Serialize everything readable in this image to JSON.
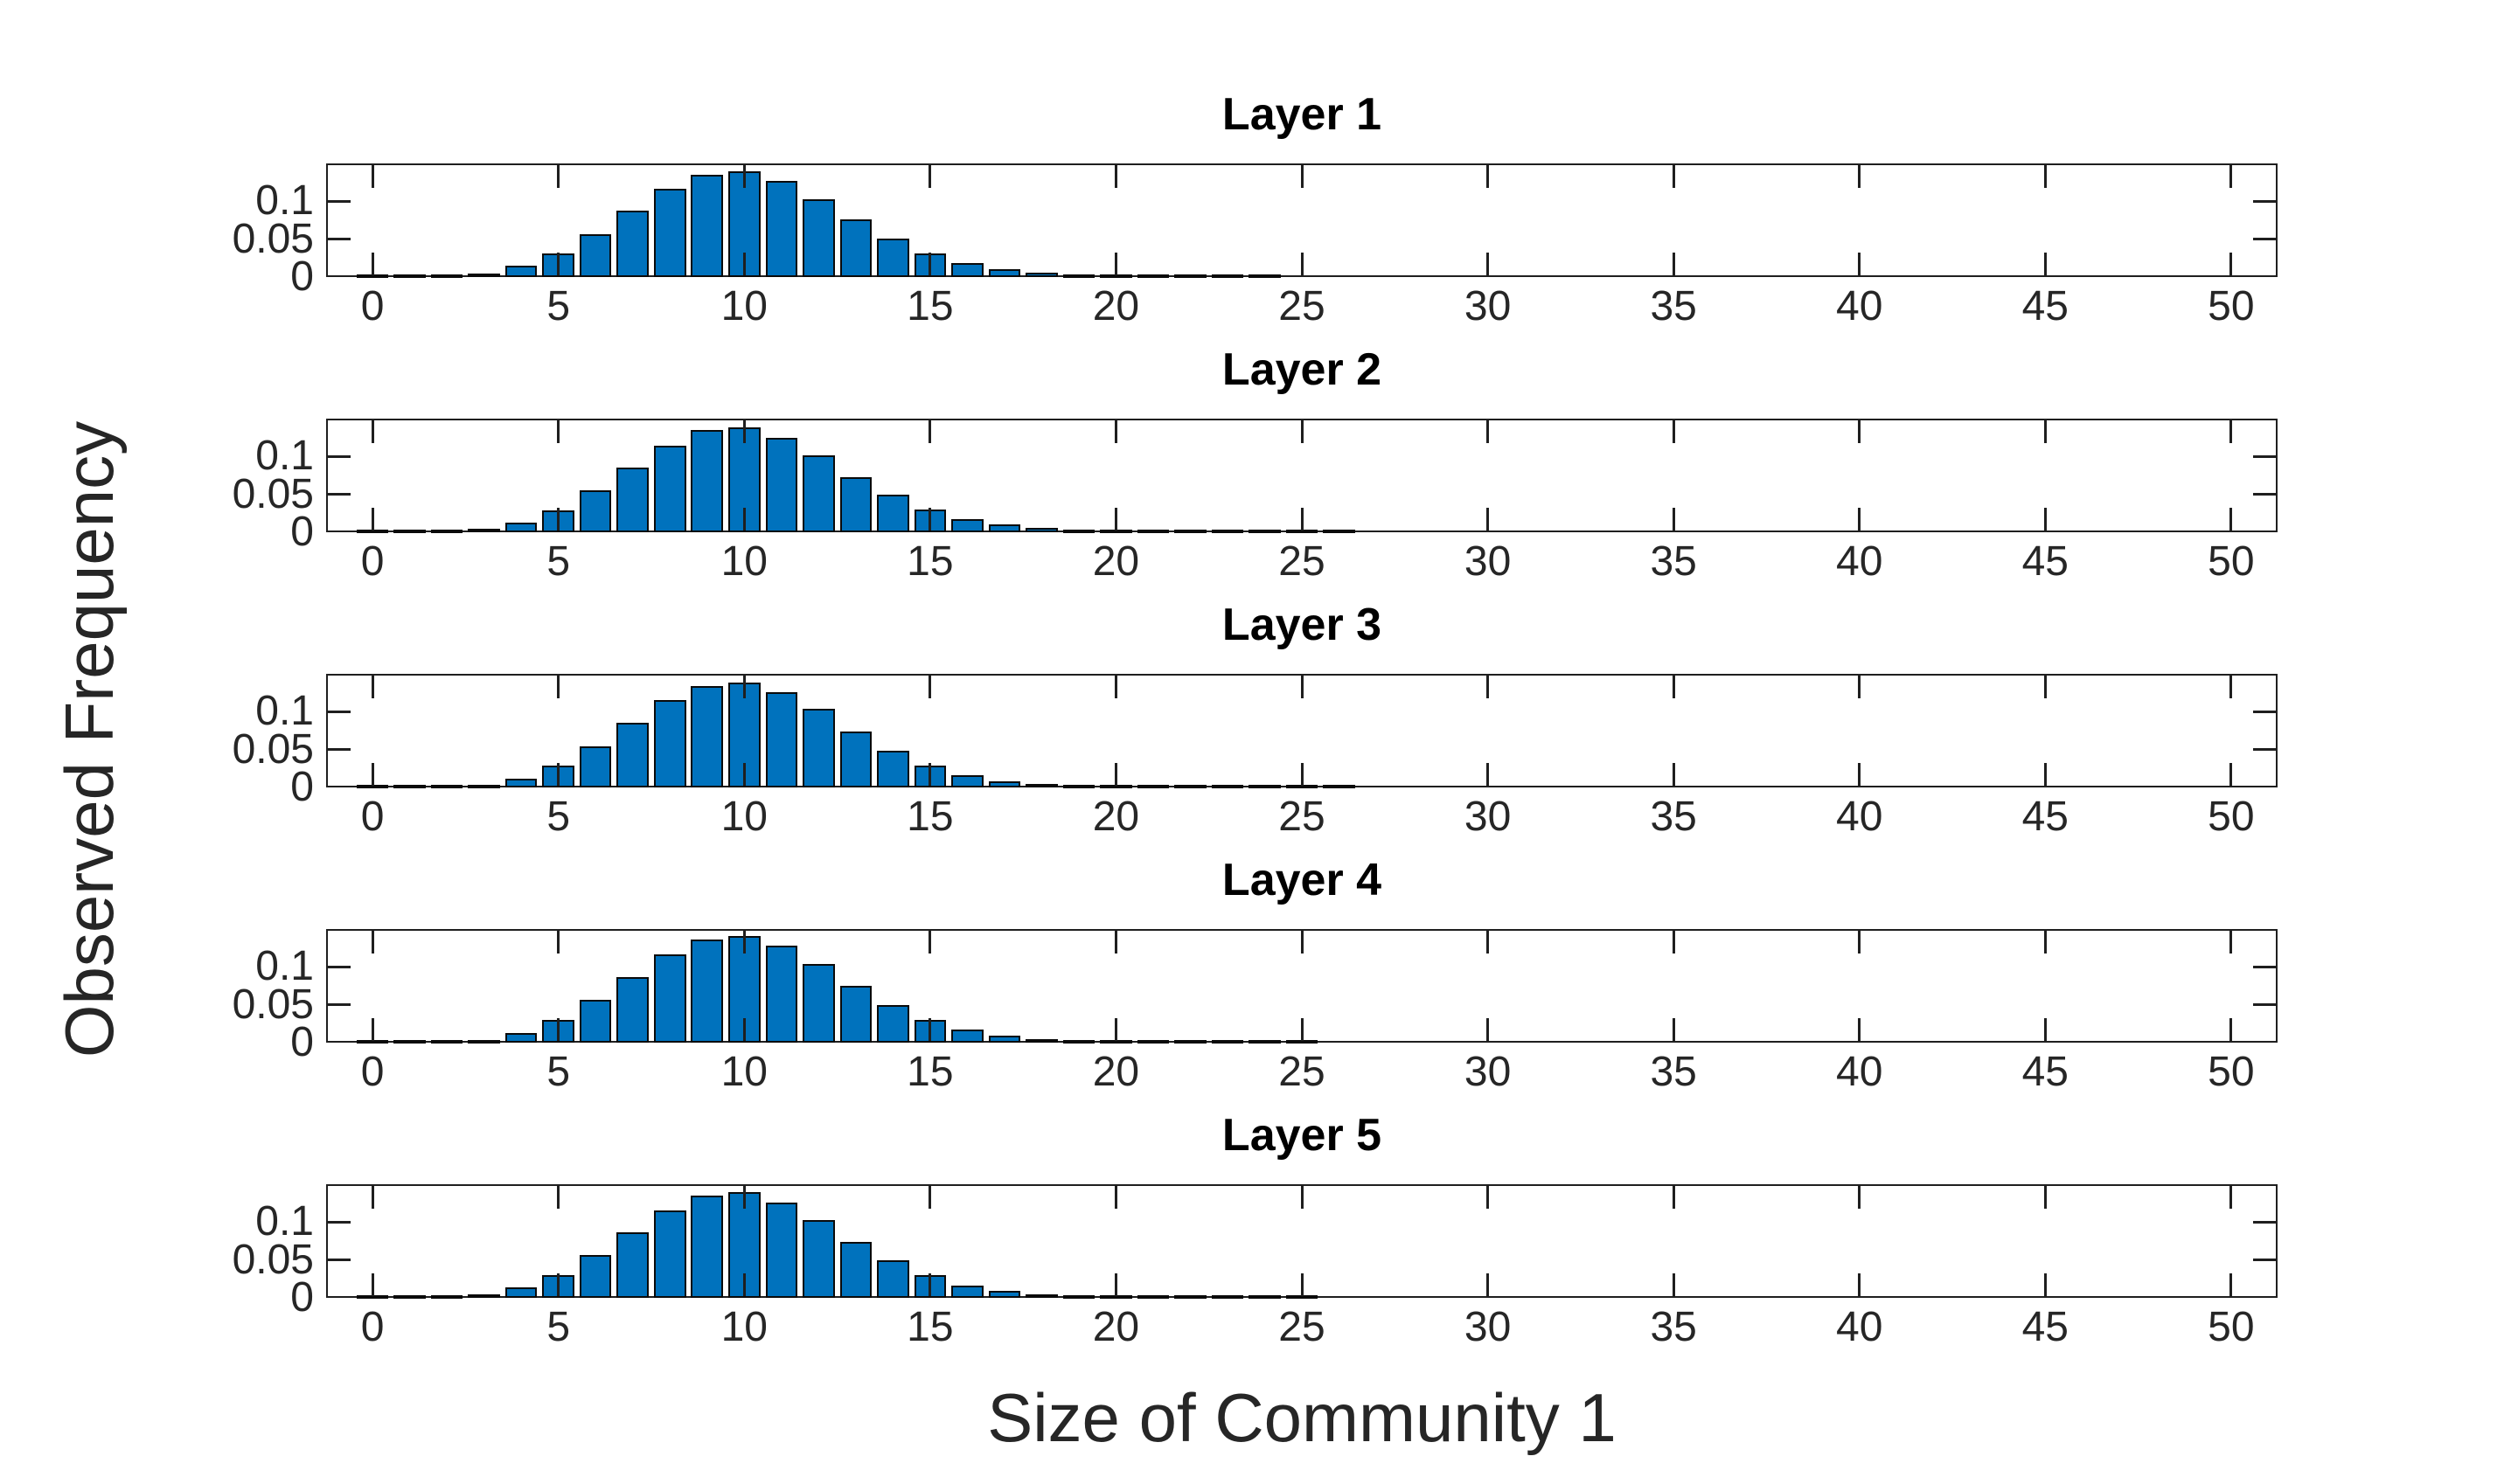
{
  "figure": {
    "xlabel": "Size of Community 1",
    "ylabel": "Observed Frequency"
  },
  "colors": {
    "bar_fill": "#0072BD",
    "bar_edge": "#0a0a0a",
    "axis": "#1f1f1f",
    "text": "#262626",
    "background": "#ffffff"
  },
  "chart_data": [
    {
      "type": "bar",
      "title": "Layer 1",
      "xlabel": "",
      "ylabel": "",
      "xlim": [
        -1.25,
        51.25
      ],
      "ylim": [
        0,
        0.15
      ],
      "xticks": [
        0,
        5,
        10,
        15,
        20,
        25,
        30,
        35,
        40,
        45,
        50
      ],
      "yticks": [
        0,
        0.05,
        0.1
      ],
      "x": [
        0,
        1,
        2,
        3,
        4,
        5,
        6,
        7,
        8,
        9,
        10,
        11,
        12,
        13,
        14,
        15,
        16,
        17,
        18,
        19,
        20,
        21,
        22,
        23,
        24
      ],
      "values": [
        0.0008,
        0.0008,
        0.0012,
        0.005,
        0.015,
        0.031,
        0.057,
        0.088,
        0.117,
        0.135,
        0.14,
        0.127,
        0.103,
        0.076,
        0.051,
        0.031,
        0.018,
        0.01,
        0.006,
        0.0035,
        0.0017,
        0.0008,
        0.0008,
        0.0008,
        0.0008
      ]
    },
    {
      "type": "bar",
      "title": "Layer 2",
      "xlabel": "",
      "ylabel": "",
      "xlim": [
        -1.25,
        51.25
      ],
      "ylim": [
        0,
        0.15
      ],
      "xticks": [
        0,
        5,
        10,
        15,
        20,
        25,
        30,
        35,
        40,
        45,
        50
      ],
      "yticks": [
        0,
        0.05,
        0.1
      ],
      "x": [
        0,
        1,
        2,
        3,
        4,
        5,
        6,
        7,
        8,
        9,
        10,
        11,
        12,
        13,
        14,
        15,
        16,
        17,
        18,
        19,
        20,
        21,
        22,
        23,
        24,
        25,
        26
      ],
      "values": [
        0.0008,
        0.001,
        0.0025,
        0.005,
        0.013,
        0.029,
        0.055,
        0.085,
        0.114,
        0.135,
        0.139,
        0.125,
        0.102,
        0.073,
        0.05,
        0.03,
        0.017,
        0.01,
        0.0055,
        0.003,
        0.0015,
        0.0008,
        0.0008,
        0.0008,
        0.0008,
        0.0008,
        0.0008
      ]
    },
    {
      "type": "bar",
      "title": "Layer 3",
      "xlabel": "",
      "ylabel": "",
      "xlim": [
        -1.25,
        51.25
      ],
      "ylim": [
        0,
        0.15
      ],
      "xticks": [
        0,
        5,
        10,
        15,
        20,
        25,
        30,
        35,
        40,
        45,
        50
      ],
      "yticks": [
        0,
        0.05,
        0.1
      ],
      "x": [
        0,
        1,
        2,
        3,
        4,
        5,
        6,
        7,
        8,
        9,
        10,
        11,
        12,
        13,
        14,
        15,
        16,
        17,
        18,
        19,
        20,
        21,
        22,
        23,
        24,
        25,
        26
      ],
      "values": [
        0.0008,
        0.0008,
        0.001,
        0.004,
        0.012,
        0.029,
        0.054,
        0.085,
        0.115,
        0.134,
        0.139,
        0.126,
        0.104,
        0.074,
        0.049,
        0.029,
        0.016,
        0.008,
        0.0045,
        0.0022,
        0.001,
        0.0008,
        0.0008,
        0.0008,
        0.0008,
        0.0008,
        0.0008
      ]
    },
    {
      "type": "bar",
      "title": "Layer 4",
      "xlabel": "",
      "ylabel": "",
      "xlim": [
        -1.25,
        51.25
      ],
      "ylim": [
        0,
        0.15
      ],
      "xticks": [
        0,
        5,
        10,
        15,
        20,
        25,
        30,
        35,
        40,
        45,
        50
      ],
      "yticks": [
        0,
        0.05,
        0.1
      ],
      "x": [
        0,
        1,
        2,
        3,
        4,
        5,
        6,
        7,
        8,
        9,
        10,
        11,
        12,
        13,
        14,
        15,
        16,
        17,
        18,
        19,
        20,
        21,
        22,
        23,
        24,
        25
      ],
      "values": [
        0.0008,
        0.0008,
        0.002,
        0.004,
        0.013,
        0.03,
        0.056,
        0.087,
        0.116,
        0.136,
        0.141,
        0.128,
        0.104,
        0.075,
        0.05,
        0.03,
        0.017,
        0.009,
        0.005,
        0.0025,
        0.0012,
        0.0008,
        0.0008,
        0.0008,
        0.0008,
        0.0008
      ]
    },
    {
      "type": "bar",
      "title": "Layer 5",
      "xlabel": "",
      "ylabel": "",
      "xlim": [
        -1.25,
        51.25
      ],
      "ylim": [
        0,
        0.15
      ],
      "xticks": [
        0,
        5,
        10,
        15,
        20,
        25,
        30,
        35,
        40,
        45,
        50
      ],
      "yticks": [
        0,
        0.05,
        0.1
      ],
      "x": [
        0,
        1,
        2,
        3,
        4,
        5,
        6,
        7,
        8,
        9,
        10,
        11,
        12,
        13,
        14,
        15,
        16,
        17,
        18,
        19,
        20,
        21,
        22,
        23,
        24,
        25
      ],
      "values": [
        0.0008,
        0.0008,
        0.001,
        0.005,
        0.014,
        0.03,
        0.056,
        0.086,
        0.115,
        0.135,
        0.14,
        0.126,
        0.103,
        0.074,
        0.05,
        0.03,
        0.016,
        0.009,
        0.005,
        0.0025,
        0.0012,
        0.0008,
        0.0008,
        0.0008,
        0.0008,
        0.0008
      ]
    }
  ]
}
